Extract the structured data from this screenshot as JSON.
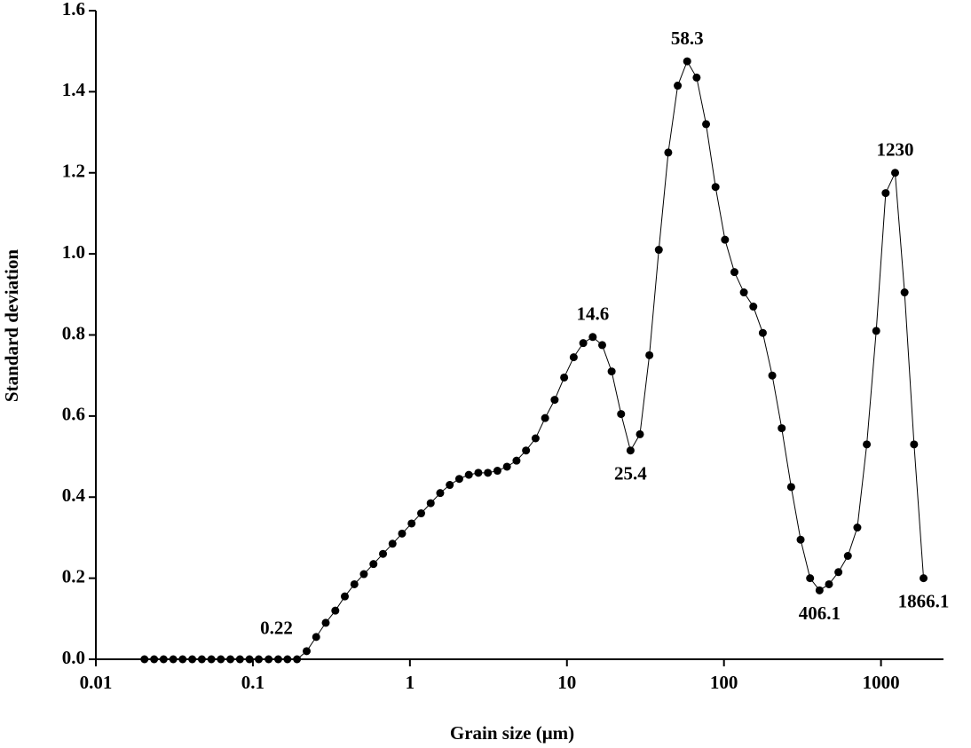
{
  "chart_data": {
    "type": "line",
    "x_label": "Grain size (μm)",
    "y_label": "Standard deviation",
    "x": [
      0.0204,
      0.0235,
      0.027,
      0.0311,
      0.0357,
      0.0411,
      0.0473,
      0.0544,
      0.0625,
      0.0719,
      0.0827,
      0.0951,
      0.109,
      0.126,
      0.145,
      0.166,
      0.191,
      0.22,
      0.253,
      0.291,
      0.335,
      0.385,
      0.443,
      0.509,
      0.586,
      0.674,
      0.775,
      0.891,
      1.025,
      1.179,
      1.356,
      1.559,
      1.793,
      2.062,
      2.372,
      2.728,
      3.137,
      3.608,
      4.15,
      4.773,
      5.489,
      6.313,
      7.26,
      8.35,
      9.6,
      11.04,
      12.7,
      14.6,
      16.77,
      19.26,
      22.12,
      25.4,
      29.17,
      33.5,
      38.47,
      44.18,
      50.75,
      58.3,
      66.97,
      76.93,
      88.37,
      101.5,
      116.6,
      133.9,
      153.8,
      176.7,
      203.0,
      233.2,
      267.9,
      307.7,
      353.5,
      406.1,
      466.4,
      535.7,
      615.3,
      706.8,
      811.8,
      932.4,
      1071,
      1230,
      1413,
      1624,
      1866.1
    ],
    "series": [
      {
        "color": "#000000",
        "values": [
          0,
          0,
          0,
          0,
          0,
          0,
          0,
          0,
          0,
          0,
          0,
          0,
          0,
          0,
          0,
          0,
          0,
          0.02,
          0.055,
          0.09,
          0.12,
          0.155,
          0.185,
          0.21,
          0.235,
          0.26,
          0.285,
          0.31,
          0.335,
          0.36,
          0.385,
          0.41,
          0.43,
          0.445,
          0.455,
          0.46,
          0.46,
          0.465,
          0.475,
          0.49,
          0.515,
          0.545,
          0.595,
          0.64,
          0.695,
          0.745,
          0.78,
          0.795,
          0.775,
          0.71,
          0.605,
          0.515,
          0.555,
          0.75,
          1.01,
          1.25,
          1.415,
          1.475,
          1.435,
          1.32,
          1.165,
          1.035,
          0.955,
          0.905,
          0.87,
          0.805,
          0.7,
          0.57,
          0.425,
          0.295,
          0.2,
          0.17,
          0.185,
          0.215,
          0.255,
          0.325,
          0.53,
          0.81,
          1.15,
          1.2,
          0.905,
          0.53,
          0.2
        ]
      }
    ],
    "point_labels": [
      null,
      null,
      null,
      null,
      null,
      null,
      null,
      null,
      null,
      null,
      null,
      null,
      null,
      null,
      null,
      null,
      null,
      "0.22",
      null,
      null,
      null,
      null,
      null,
      null,
      null,
      null,
      null,
      null,
      null,
      null,
      null,
      null,
      null,
      null,
      null,
      null,
      null,
      null,
      null,
      null,
      null,
      null,
      null,
      null,
      null,
      null,
      null,
      "14.6",
      null,
      null,
      null,
      "25.4",
      null,
      null,
      null,
      null,
      null,
      "58.3",
      null,
      null,
      null,
      null,
      null,
      null,
      null,
      null,
      null,
      null,
      null,
      null,
      null,
      "406.1",
      null,
      null,
      null,
      null,
      null,
      null,
      null,
      "1230",
      null,
      null,
      "1866.1"
    ],
    "x_log": true,
    "xlim": [
      0.01,
      2500
    ],
    "xticks": [
      0.01,
      0.1,
      1,
      10,
      100,
      1000
    ],
    "ylim": [
      0,
      1.6
    ],
    "yticks": [
      {
        "value": 0,
        "label": "0.0"
      },
      0.2,
      0.4,
      0.6,
      0.8,
      {
        "value": 1,
        "label": "1.0"
      },
      1.2,
      1.4,
      1.6
    ]
  }
}
